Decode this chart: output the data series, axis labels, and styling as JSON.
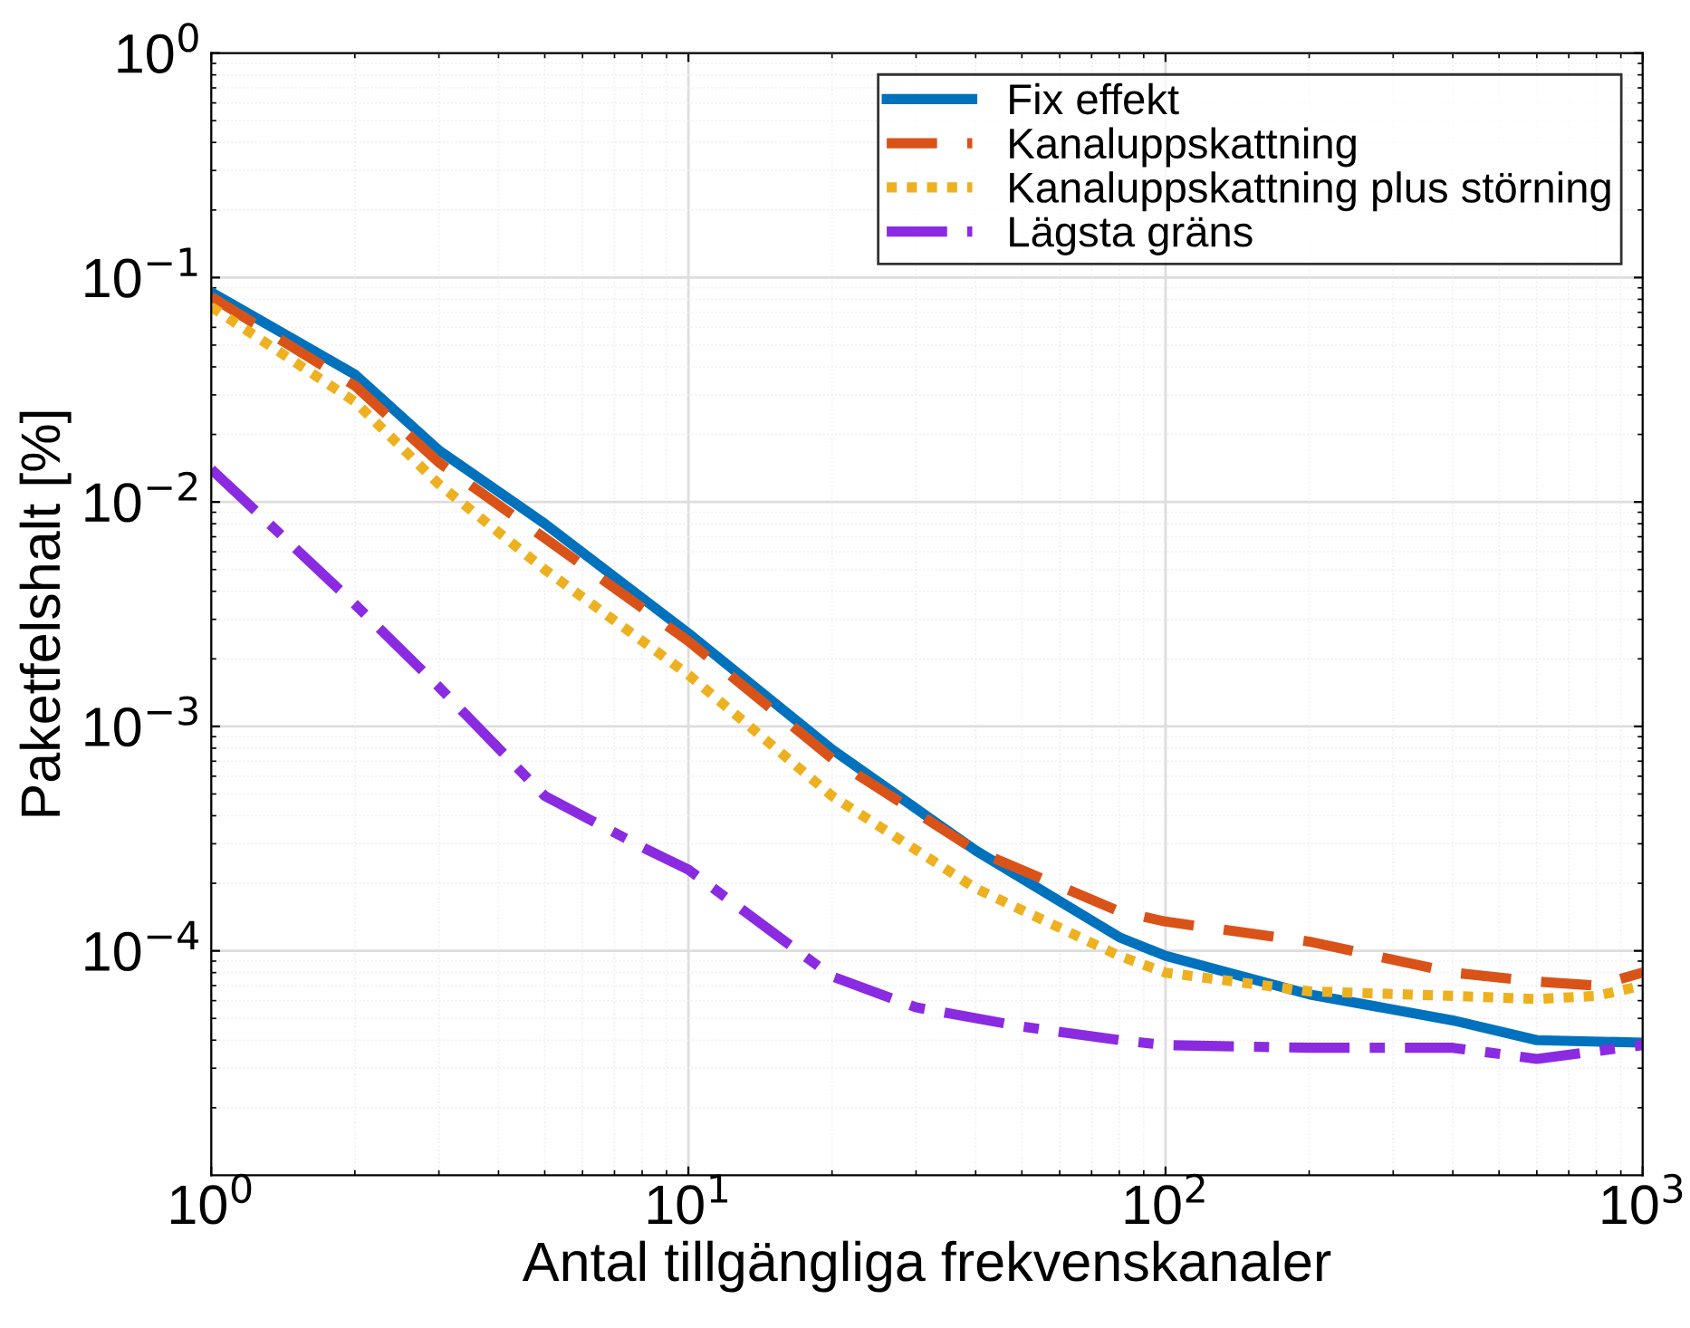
{
  "chart_data": {
    "type": "line",
    "xlabel": "Antal tillgängliga frekvenskanaler",
    "ylabel": "Paketfelshalt [%]",
    "log": "xy",
    "grid": true,
    "legend": "top right",
    "marker": "none",
    "xlim": [
      1,
      1000
    ],
    "ylim": [
      1e-05,
      1
    ],
    "xticks": [
      {
        "value": 1,
        "label": "10$^{0}$"
      },
      {
        "value": 10,
        "label": "10$^{1}$"
      },
      {
        "value": 100,
        "label": "10$^{2}$"
      },
      {
        "value": 1000,
        "label": "10$^{3}$"
      }
    ],
    "yticks": [
      {
        "value": 0.0001,
        "label": "10$^{−4}$"
      },
      {
        "value": 0.001,
        "label": "10$^{−3}$"
      },
      {
        "value": 0.01,
        "label": "10$^{−2}$"
      },
      {
        "value": 0.1,
        "label": "10$^{−1}$"
      },
      {
        "value": 1,
        "label": "10$^{0}$"
      }
    ],
    "series": [
      {
        "name": "Fix effekt",
        "color": "#0072bd",
        "line_style": "solid",
        "x": [
          1,
          2,
          3,
          5,
          10,
          20,
          40,
          80,
          100,
          200,
          400,
          600,
          1000
        ],
        "values": [
          0.086,
          0.037,
          0.017,
          0.008,
          0.0026,
          0.00079,
          0.00028,
          0.000115,
          9.5e-05,
          6.4e-05,
          4.9e-05,
          4e-05,
          3.9e-05
        ]
      },
      {
        "name": "Kanaluppskattning",
        "color": "#d95319",
        "line_style": "dashed",
        "x": [
          1,
          2,
          3,
          5,
          10,
          20,
          40,
          80,
          100,
          200,
          400,
          600,
          800,
          1000
        ],
        "values": [
          0.082,
          0.033,
          0.015,
          0.0069,
          0.0024,
          0.00072,
          0.00028,
          0.00015,
          0.000135,
          0.00011,
          8e-05,
          7.3e-05,
          7e-05,
          8e-05
        ]
      },
      {
        "name": "Kanaluppskattning plus störning",
        "color": "#edb120",
        "line_style": "dotted",
        "x": [
          1,
          2,
          3,
          5,
          10,
          20,
          40,
          80,
          100,
          200,
          400,
          600,
          800,
          1000
        ],
        "values": [
          0.074,
          0.028,
          0.012,
          0.005,
          0.0017,
          0.00049,
          0.00019,
          9.5e-05,
          8e-05,
          6.6e-05,
          6.3e-05,
          6.1e-05,
          6.3e-05,
          7e-05
        ]
      },
      {
        "name": "Lägsta gräns",
        "color": "#8a2be2",
        "line_style": "dashdot",
        "x": [
          1,
          2,
          3,
          5,
          8,
          10,
          20,
          30,
          50,
          80,
          100,
          200,
          400,
          600,
          1000
        ],
        "values": [
          0.014,
          0.0035,
          0.0015,
          0.00049,
          0.00029,
          0.00023,
          7.7e-05,
          5.6e-05,
          4.6e-05,
          4e-05,
          3.8e-05,
          3.7e-05,
          3.7e-05,
          3.3e-05,
          3.8e-05
        ]
      }
    ]
  }
}
